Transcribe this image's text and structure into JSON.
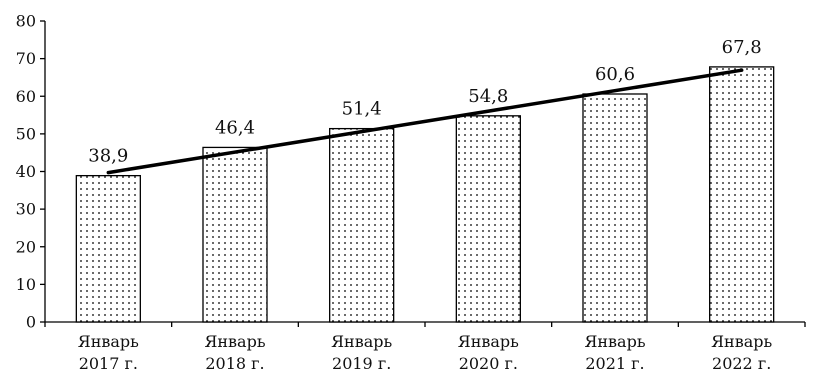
{
  "chart_data": {
    "type": "bar",
    "categories": [
      [
        "Январь",
        "2017 г."
      ],
      [
        "Январь",
        "2018 г."
      ],
      [
        "Январь",
        "2019 г."
      ],
      [
        "Январь",
        "2020 г."
      ],
      [
        "Январь",
        "2021 г."
      ],
      [
        "Январь",
        "2022 г."
      ]
    ],
    "values": [
      38.9,
      46.4,
      51.4,
      54.8,
      60.6,
      67.8
    ],
    "data_labels": [
      "38,9",
      "46,4",
      "51,4",
      "54,8",
      "60,6",
      "67,8"
    ],
    "ylim": [
      0,
      80
    ],
    "yticks": [
      0,
      10,
      20,
      30,
      40,
      50,
      60,
      70,
      80
    ],
    "ytick_labels": [
      "0",
      "10",
      "20",
      "30",
      "40",
      "50",
      "60",
      "70",
      "80"
    ],
    "trendline": {
      "type": "linear",
      "color": "#000000"
    },
    "bar_fill": "dotted",
    "grid": false,
    "legend": "none"
  }
}
